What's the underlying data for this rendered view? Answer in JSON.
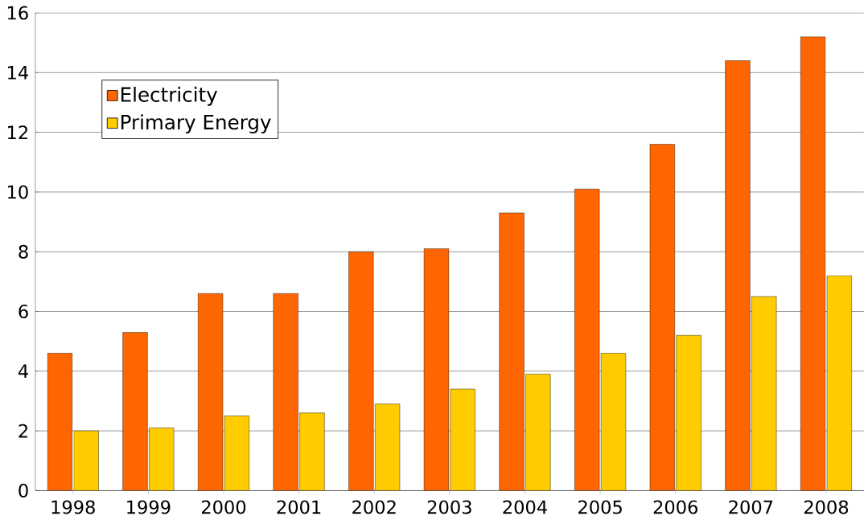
{
  "chart_data": {
    "type": "bar",
    "categories": [
      "1998",
      "1999",
      "2000",
      "2001",
      "2002",
      "2003",
      "2004",
      "2005",
      "2006",
      "2007",
      "2008"
    ],
    "series": [
      {
        "name": "Electricity",
        "color": "#ff6600",
        "values": [
          4.6,
          5.3,
          6.6,
          6.6,
          8.0,
          8.1,
          9.3,
          10.1,
          11.6,
          14.4,
          15.2
        ]
      },
      {
        "name": "Primary Energy",
        "color": "#ffcc00",
        "values": [
          2.0,
          2.1,
          2.5,
          2.6,
          2.9,
          3.4,
          3.9,
          4.6,
          5.2,
          6.5,
          7.2
        ]
      }
    ],
    "ylim": [
      0,
      16
    ],
    "yticks": [
      0,
      2,
      4,
      6,
      8,
      10,
      12,
      14,
      16
    ],
    "grid": "y",
    "legend": "top left"
  }
}
